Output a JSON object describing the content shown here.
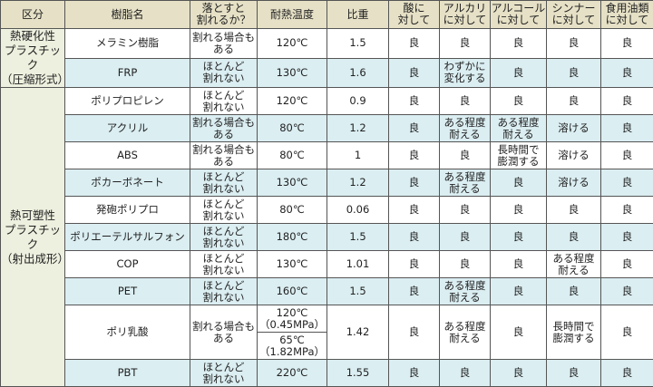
{
  "headers": [
    "区分",
    "樹脂名",
    "落とすと\n割れるか？",
    "耐熱温度",
    "比重",
    "酸に\n対して",
    "アルカリ\nに対して",
    "アルコール\nに対して",
    "シンナー\nに対して",
    "食用油類\nに対して"
  ],
  "categories": [
    {
      "label": "熱硬化性\nプラスチック\n（圧縮形式）",
      "rows": 2
    },
    {
      "label": "熱可塑性\nプラスチック\n（射出成形）",
      "rows": 10
    }
  ],
  "colors": {
    "header_bg": "#e6e1c6",
    "category_bg": "#eef0df",
    "row_alt_bg": "#dbeef2",
    "border": "#555555"
  },
  "rows": [
    {
      "name": "メラミン樹脂",
      "drop": "割れる場合も\nある",
      "heat": "120℃",
      "sg": "1.5",
      "acid": "良",
      "alkali": "良",
      "alcohol": "良",
      "thinner": "良",
      "oil": "良"
    },
    {
      "name": "FRP",
      "drop": "ほとんど\n割れない",
      "heat": "130℃",
      "sg": "1.6",
      "acid": "良",
      "alkali": "わずかに\n変化する",
      "alcohol": "良",
      "thinner": "良",
      "oil": "良"
    },
    {
      "name": "ポリプロピレン",
      "drop": "ほとんど\n割れない",
      "heat": "120℃",
      "sg": "0.9",
      "acid": "良",
      "alkali": "良",
      "alcohol": "良",
      "thinner": "良",
      "oil": "良"
    },
    {
      "name": "アクリル",
      "drop": "割れる場合も\nある",
      "heat": "80℃",
      "sg": "1.2",
      "acid": "良",
      "alkali": "ある程度\n耐える",
      "alcohol": "ある程度\n耐える",
      "thinner": "溶ける",
      "oil": "良"
    },
    {
      "name": "ABS",
      "drop": "割れる場合も\nある",
      "heat": "80℃",
      "sg": "1",
      "acid": "良",
      "alkali": "良",
      "alcohol": "長時間で\n膨潤する",
      "thinner": "溶ける",
      "oil": "良"
    },
    {
      "name": "ポカーボネート",
      "drop": "ほとんど\n割れない",
      "heat": "130℃",
      "sg": "1.2",
      "acid": "良",
      "alkali": "ある程度\n耐える",
      "alcohol": "良",
      "thinner": "溶ける",
      "oil": "良"
    },
    {
      "name": "発砲ポリプロ",
      "drop": "ほとんど\n割れない",
      "heat": "80℃",
      "sg": "0.06",
      "acid": "良",
      "alkali": "良",
      "alcohol": "良",
      "thinner": "良",
      "oil": "良"
    },
    {
      "name": "ポリエーテルサルフォン",
      "drop": "ほとんど\n割れない",
      "heat": "180℃",
      "sg": "1.5",
      "acid": "良",
      "alkali": "良",
      "alcohol": "良",
      "thinner": "良",
      "oil": "良"
    },
    {
      "name": "COP",
      "drop": "ほとんど\n割れない",
      "heat": "130℃",
      "sg": "1.01",
      "acid": "良",
      "alkali": "良",
      "alcohol": "良",
      "thinner": "ある程度\n耐える",
      "oil": "良"
    },
    {
      "name": "PET",
      "drop": "ほとんど\n割れない",
      "heat": "160℃",
      "sg": "1.5",
      "acid": "良",
      "alkali": "ある程度\n耐える",
      "alcohol": "良",
      "thinner": "良",
      "oil": "良"
    },
    {
      "name": "ポリ乳酸",
      "drop": "割れる場合も\nある",
      "heat": "120℃\n（0.45MPa）",
      "heat2": "65℃\n（1.82MPa）",
      "sg": "1.42",
      "acid": "良",
      "alkali": "ある程度\n耐える",
      "alcohol": "良",
      "thinner": "長時間で\n膨潤する",
      "oil": "良"
    },
    {
      "name": "PBT",
      "drop": "ほとんど\n割れない",
      "heat": "220℃",
      "sg": "1.55",
      "acid": "良",
      "alkali": "良",
      "alcohol": "良",
      "thinner": "良",
      "oil": "良"
    }
  ]
}
